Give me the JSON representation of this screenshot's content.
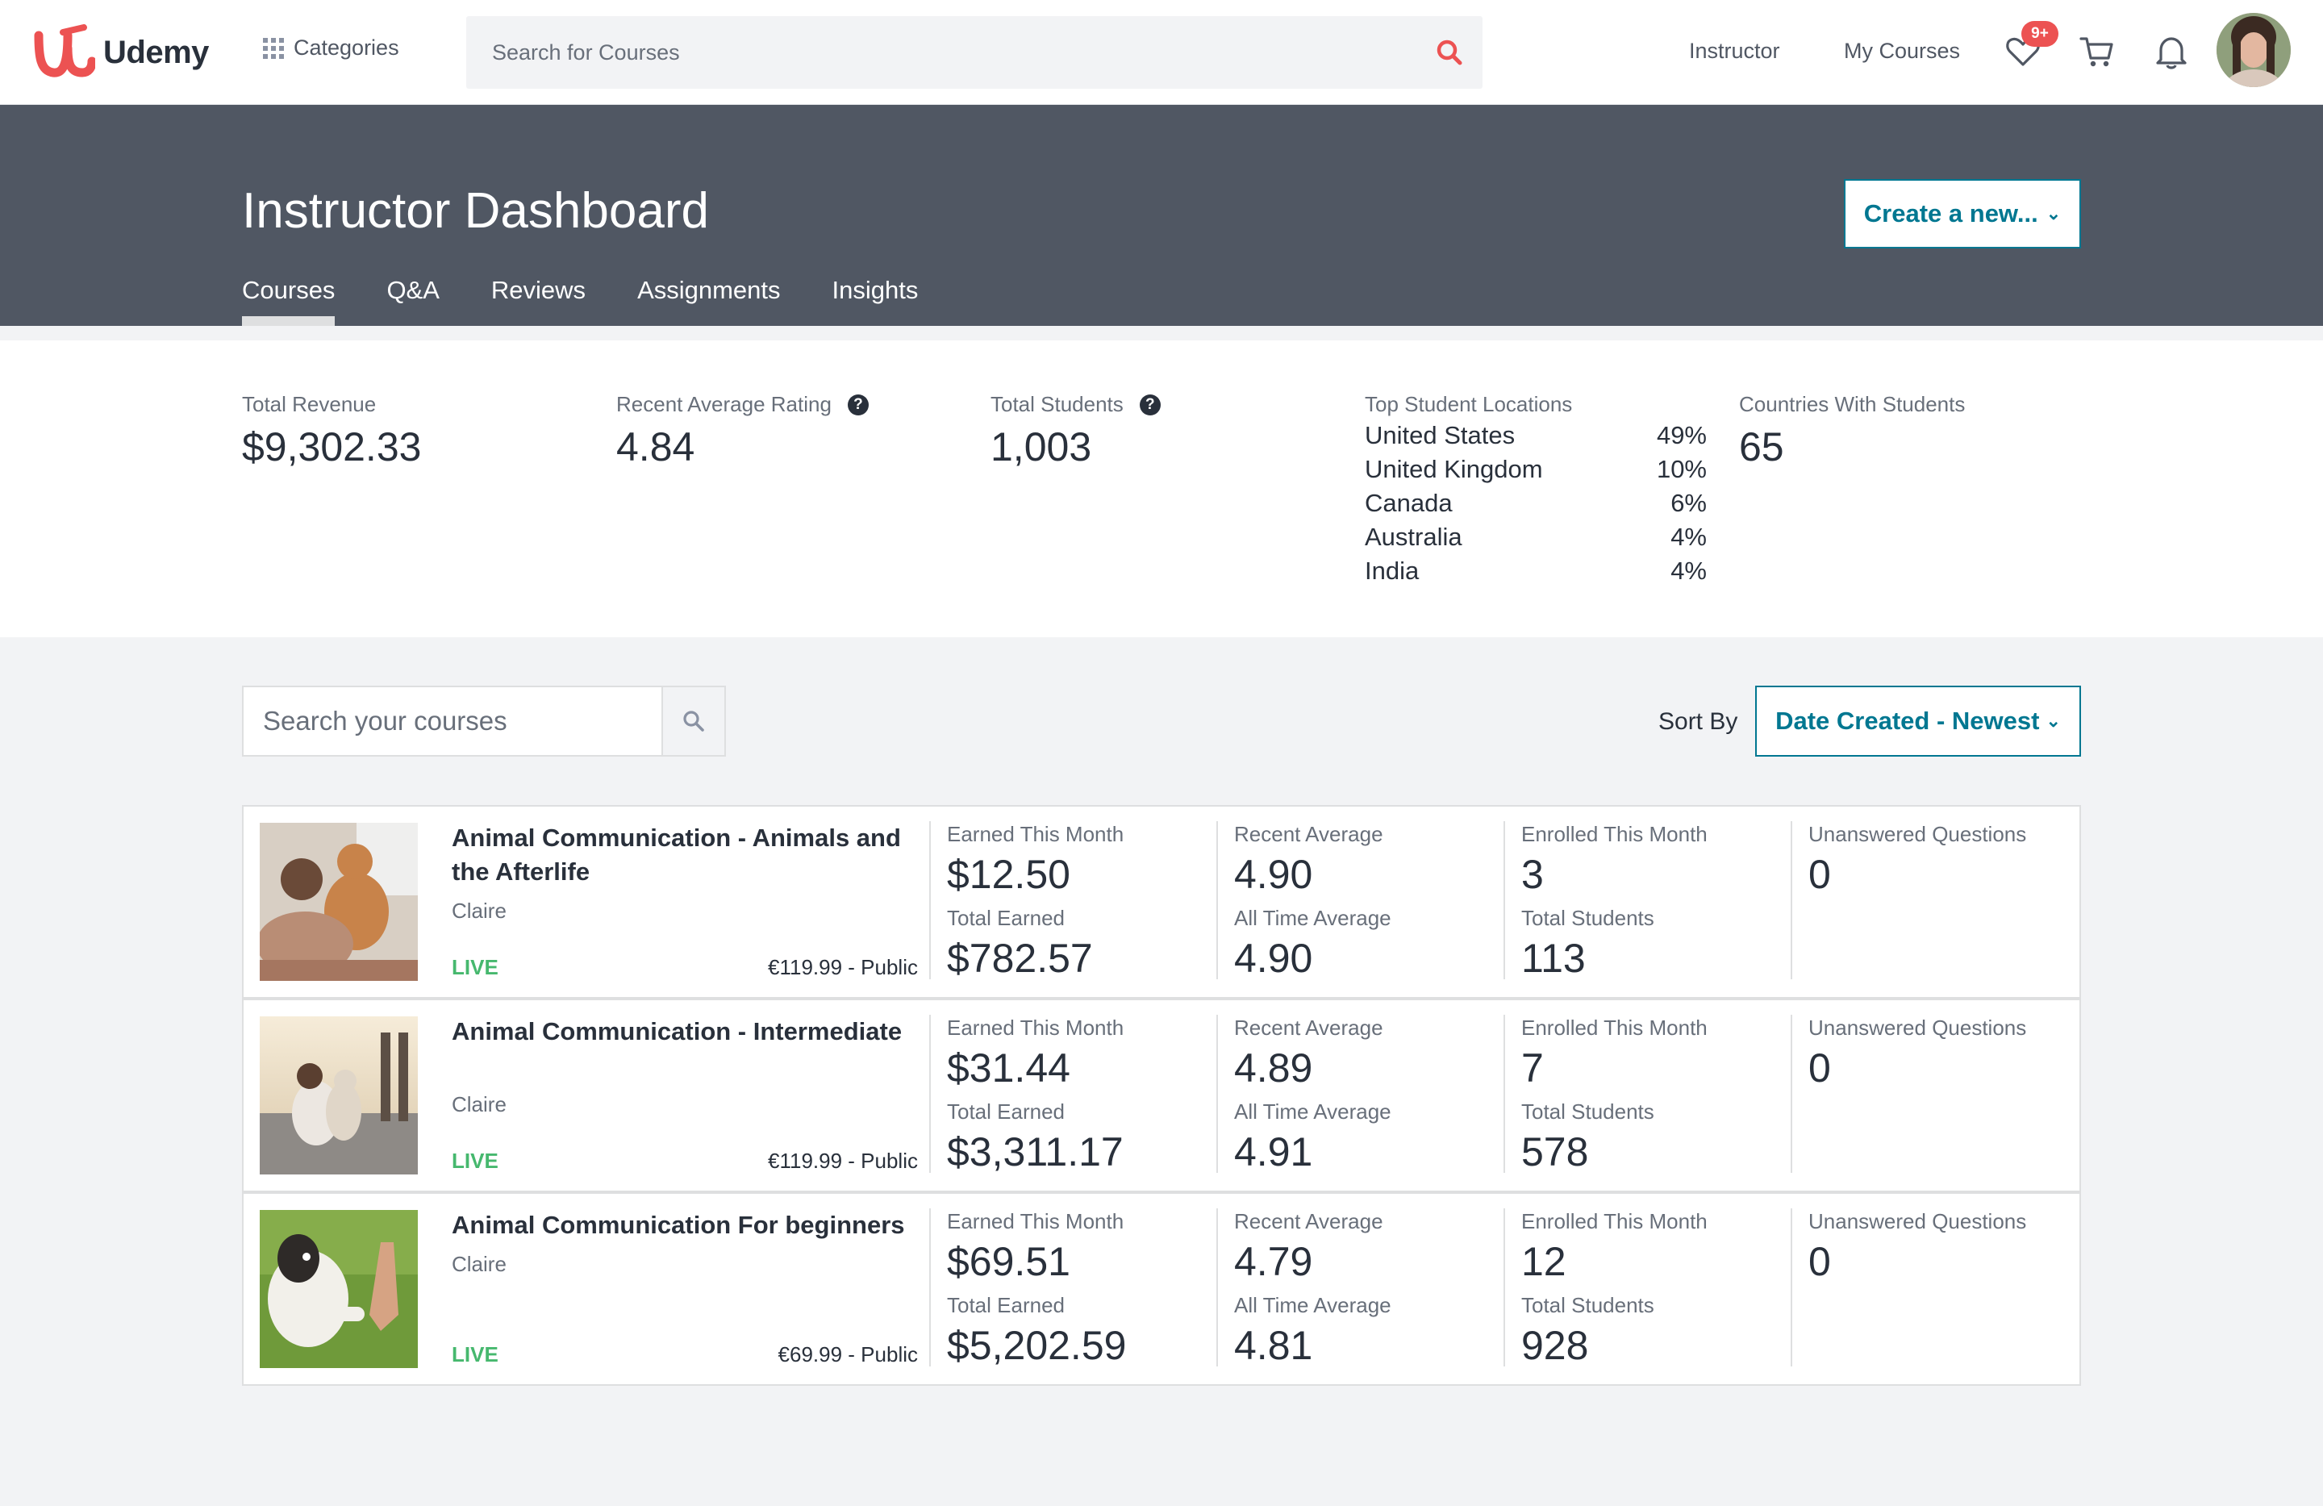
{
  "app": {
    "brand": "Udemy",
    "brand_color": "#ec5252",
    "accent_color": "#007791",
    "live_color": "#46b86e"
  },
  "topnav": {
    "categories_label": "Categories",
    "search_placeholder": "Search for Courses",
    "instructor_label": "Instructor",
    "my_courses_label": "My Courses",
    "wishlist_badge": "9+",
    "icons": [
      "grid-icon",
      "search-icon",
      "heart-icon",
      "cart-icon",
      "bell-icon"
    ]
  },
  "header": {
    "title": "Instructor Dashboard",
    "create_button": "Create a new...",
    "tabs": [
      {
        "label": "Courses",
        "active": true
      },
      {
        "label": "Q&A",
        "active": false
      },
      {
        "label": "Reviews",
        "active": false
      },
      {
        "label": "Assignments",
        "active": false
      },
      {
        "label": "Insights",
        "active": false
      }
    ]
  },
  "stats": {
    "total_revenue": {
      "label": "Total Revenue",
      "value": "$9,302.33"
    },
    "recent_rating": {
      "label": "Recent Average Rating",
      "value": "4.84"
    },
    "total_students": {
      "label": "Total Students",
      "value": "1,003"
    },
    "top_locations": {
      "label": "Top Student Locations",
      "items": [
        {
          "country": "United States",
          "pct": "49%"
        },
        {
          "country": "United Kingdom",
          "pct": "10%"
        },
        {
          "country": "Canada",
          "pct": "6%"
        },
        {
          "country": "Australia",
          "pct": "4%"
        },
        {
          "country": "India",
          "pct": "4%"
        }
      ]
    },
    "countries": {
      "label": "Countries With Students",
      "value": "65"
    }
  },
  "controls": {
    "course_search_placeholder": "Search your courses",
    "sort_label": "Sort By",
    "sort_value": "Date Created - Newest"
  },
  "metric_labels": {
    "earned_month": "Earned This Month",
    "total_earned": "Total Earned",
    "recent_avg": "Recent Average",
    "all_time_avg": "All Time Average",
    "enrolled_month": "Enrolled This Month",
    "total_students": "Total Students",
    "unanswered": "Unanswered Questions"
  },
  "courses": [
    {
      "title": "Animal Communication - Animals and the Afterlife",
      "author": "Claire",
      "status": "LIVE",
      "price": "€119.99 - Public",
      "earned_month": "$12.50",
      "total_earned": "$782.57",
      "recent_avg": "4.90",
      "all_time_avg": "4.90",
      "enrolled_month": "3",
      "total_students": "113",
      "unanswered": "0"
    },
    {
      "title": "Animal Communication - Intermediate",
      "author": "Claire",
      "status": "LIVE",
      "price": "€119.99 - Public",
      "earned_month": "$31.44",
      "total_earned": "$3,311.17",
      "recent_avg": "4.89",
      "all_time_avg": "4.91",
      "enrolled_month": "7",
      "total_students": "578",
      "unanswered": "0"
    },
    {
      "title": "Animal Communication For beginners",
      "author": "Claire",
      "status": "LIVE",
      "price": "€69.99 - Public",
      "earned_month": "$69.51",
      "total_earned": "$5,202.59",
      "recent_avg": "4.79",
      "all_time_avg": "4.81",
      "enrolled_month": "12",
      "total_students": "928",
      "unanswered": "0"
    }
  ]
}
